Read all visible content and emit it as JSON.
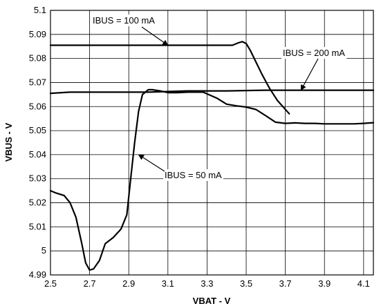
{
  "chart_data": {
    "type": "line",
    "title": "",
    "xlabel": "VBAT - V",
    "ylabel": "VBUS - V",
    "xlim": [
      2.5,
      4.15
    ],
    "ylim": [
      4.99,
      5.1
    ],
    "x_ticks": [
      "2.5",
      "2.7",
      "2.9",
      "3.1",
      "3.3",
      "3.5",
      "3.7",
      "3.9",
      "4.1"
    ],
    "y_ticks": [
      "4.99",
      "5",
      "5.01",
      "5.02",
      "5.03",
      "5.04",
      "5.05",
      "5.06",
      "5.07",
      "5.08",
      "5.09",
      "5.1"
    ],
    "grid": true,
    "series": [
      {
        "name": "IBUS = 100 mA",
        "x": [
          2.5,
          2.8,
          3.1,
          3.3,
          3.43,
          3.46,
          3.48,
          3.5,
          3.52,
          3.55,
          3.58,
          3.62,
          3.66,
          3.72
        ],
        "y": [
          5.0855,
          5.0855,
          5.0855,
          5.0855,
          5.0855,
          5.0865,
          5.087,
          5.0862,
          5.0835,
          5.0785,
          5.0735,
          5.0675,
          5.0625,
          5.057
        ]
      },
      {
        "name": "IBUS = 200 mA",
        "x": [
          2.5,
          2.6,
          2.8,
          3.0,
          3.2,
          3.4,
          3.6,
          3.8,
          4.0,
          4.15
        ],
        "y": [
          5.0655,
          5.066,
          5.066,
          5.066,
          5.0665,
          5.0665,
          5.0668,
          5.0668,
          5.0668,
          5.0668
        ]
      },
      {
        "name": "IBUS = 50 mA",
        "x": [
          2.5,
          2.53,
          2.57,
          2.6,
          2.63,
          2.66,
          2.68,
          2.7,
          2.72,
          2.75,
          2.78,
          2.82,
          2.86,
          2.89,
          2.91,
          2.93,
          2.95,
          2.97,
          3.0,
          3.02,
          3.06,
          3.1,
          3.15,
          3.2,
          3.28,
          3.35,
          3.4,
          3.45,
          3.5,
          3.55,
          3.6,
          3.65,
          3.7,
          3.75,
          3.8,
          3.85,
          3.9,
          3.95,
          4.0,
          4.05,
          4.1,
          4.15
        ],
        "y": [
          5.025,
          5.024,
          5.023,
          5.02,
          5.014,
          5.003,
          4.995,
          4.992,
          4.9925,
          4.996,
          5.003,
          5.0055,
          5.009,
          5.015,
          5.03,
          5.045,
          5.058,
          5.065,
          5.067,
          5.067,
          5.0665,
          5.0658,
          5.0658,
          5.066,
          5.066,
          5.0635,
          5.061,
          5.0603,
          5.0598,
          5.0588,
          5.0562,
          5.0535,
          5.053,
          5.0532,
          5.053,
          5.053,
          5.0528,
          5.0528,
          5.0528,
          5.0528,
          5.053,
          5.0533
        ]
      }
    ],
    "annotations": [
      {
        "text": "IBUS = 100 mA",
        "target_series": "IBUS = 100 mA",
        "arrow_to_x": 3.1,
        "arrow_to_y": 5.0855
      },
      {
        "text": "IBUS = 200 mA",
        "target_series": "IBUS = 200 mA",
        "arrow_to_x": 3.78,
        "arrow_to_y": 5.0668
      },
      {
        "text": "IBUS = 50 mA",
        "target_series": "IBUS = 50 mA",
        "arrow_to_x": 2.95,
        "arrow_to_y": 5.04
      }
    ]
  }
}
